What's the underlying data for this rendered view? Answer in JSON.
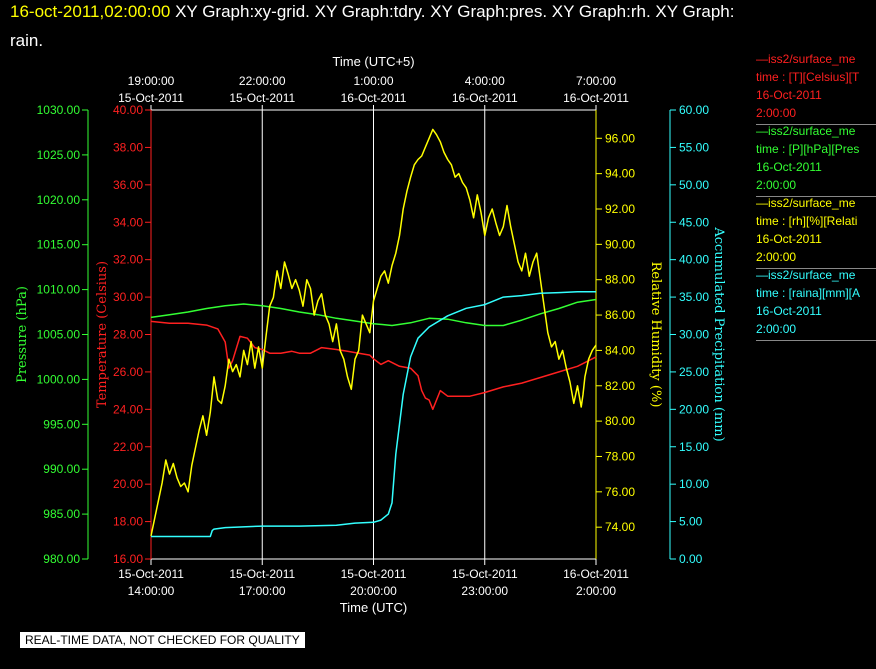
{
  "header": {
    "timestamp": "16-oct-2011,02:00:00",
    "graphs": " XY Graph:xy-grid.  XY Graph:tdry.  XY Graph:pres.  XY Graph:rh.  XY Graph:",
    "graphs_cont": "rain."
  },
  "footer": "REAL-TIME DATA, NOT CHECKED FOR QUALITY",
  "legend": [
    {
      "name": "—iss2/surface_me",
      "detail": "time : [T][Celsius][T",
      "date": "16-Oct-2011",
      "time": "2:00:00",
      "color": "#ff2020"
    },
    {
      "name": "—iss2/surface_me",
      "detail": "time : [P][hPa][Pres",
      "date": "16-Oct-2011",
      "time": "2:00:00",
      "color": "#33ff33"
    },
    {
      "name": "—iss2/surface_me",
      "detail": "time : [rh][%][Relati",
      "date": "16-Oct-2011",
      "time": "2:00:00",
      "color": "#ffff00"
    },
    {
      "name": "—iss2/surface_me",
      "detail": "time : [raina][mm][A",
      "date": "16-Oct-2011",
      "time": "2:00:00",
      "color": "#33ffff"
    }
  ],
  "chart_data": {
    "type": "line",
    "xlabel_bottom": "Time (UTC)",
    "xlabel_top": "Time (UTC+5)",
    "x_range_hours": [
      0,
      12
    ],
    "bottom_ticks": [
      {
        "h": 0,
        "date": "15-Oct-2011",
        "time": "14:00:00"
      },
      {
        "h": 3,
        "date": "15-Oct-2011",
        "time": "17:00:00"
      },
      {
        "h": 6,
        "date": "15-Oct-2011",
        "time": "20:00:00"
      },
      {
        "h": 9,
        "date": "15-Oct-2011",
        "time": "23:00:00"
      },
      {
        "h": 12,
        "date": "16-Oct-2011",
        "time": "2:00:00"
      }
    ],
    "top_ticks": [
      {
        "h": 0,
        "time": "19:00:00",
        "date": "15-Oct-2011"
      },
      {
        "h": 3,
        "time": "22:00:00",
        "date": "15-Oct-2011"
      },
      {
        "h": 6,
        "time": "1:00:00",
        "date": "16-Oct-2011"
      },
      {
        "h": 9,
        "time": "4:00:00",
        "date": "16-Oct-2011"
      },
      {
        "h": 12,
        "time": "7:00:00",
        "date": "16-Oct-2011"
      }
    ],
    "grid": true,
    "axes": [
      {
        "id": "pres",
        "label": "Pressure (hPa)",
        "color": "#33ff33",
        "min": 980,
        "max": 1030,
        "step": 5,
        "decimals": 2
      },
      {
        "id": "temp",
        "label": "Temperature (Celsius)",
        "color": "#ff2020",
        "min": 16,
        "max": 40,
        "step": 2,
        "decimals": 2
      },
      {
        "id": "rh",
        "label": "Relative Humidity (%)",
        "color": "#ffff00",
        "min": 72.2,
        "max": 97.6,
        "step": 2,
        "first": 74,
        "last": 96,
        "decimals": 2
      },
      {
        "id": "rain",
        "label": "Accumulated Precipitation (mm)",
        "color": "#33ffff",
        "min": 0,
        "max": 60,
        "step": 5,
        "decimals": 2
      }
    ],
    "series": [
      {
        "axis": "temp",
        "color": "#ff2020",
        "points": [
          [
            0,
            28.7
          ],
          [
            0.5,
            28.6
          ],
          [
            1,
            28.6
          ],
          [
            1.5,
            28.5
          ],
          [
            1.8,
            28.3
          ],
          [
            2.0,
            27.6
          ],
          [
            2.1,
            26.2
          ],
          [
            2.2,
            26.6
          ],
          [
            2.4,
            27.9
          ],
          [
            2.6,
            27.8
          ],
          [
            2.8,
            27.3
          ],
          [
            3.0,
            27.2
          ],
          [
            3.2,
            27.0
          ],
          [
            3.5,
            27.0
          ],
          [
            3.8,
            27.1
          ],
          [
            4.0,
            27.0
          ],
          [
            4.3,
            27.0
          ],
          [
            4.6,
            27.3
          ],
          [
            5.0,
            27.2
          ],
          [
            5.3,
            27.1
          ],
          [
            5.6,
            27.0
          ],
          [
            5.9,
            26.9
          ],
          [
            6.0,
            26.7
          ],
          [
            6.2,
            26.4
          ],
          [
            6.4,
            26.6
          ],
          [
            6.7,
            26.3
          ],
          [
            7.0,
            26.2
          ],
          [
            7.2,
            25.8
          ],
          [
            7.3,
            25.0
          ],
          [
            7.4,
            24.6
          ],
          [
            7.5,
            24.5
          ],
          [
            7.6,
            24.0
          ],
          [
            7.8,
            25.0
          ],
          [
            8.0,
            24.7
          ],
          [
            8.3,
            24.7
          ],
          [
            8.6,
            24.7
          ],
          [
            9.0,
            24.9
          ],
          [
            9.5,
            25.2
          ],
          [
            10.0,
            25.4
          ],
          [
            10.5,
            25.7
          ],
          [
            11.0,
            26.0
          ],
          [
            11.5,
            26.3
          ],
          [
            12.0,
            26.8
          ]
        ]
      },
      {
        "axis": "pres",
        "color": "#33ff33",
        "points": [
          [
            0,
            1006.9
          ],
          [
            0.5,
            1007.2
          ],
          [
            1,
            1007.5
          ],
          [
            1.5,
            1007.9
          ],
          [
            2,
            1008.2
          ],
          [
            2.5,
            1008.4
          ],
          [
            3,
            1008.2
          ],
          [
            3.5,
            1007.9
          ],
          [
            4,
            1007.5
          ],
          [
            4.5,
            1007.2
          ],
          [
            5,
            1006.8
          ],
          [
            5.5,
            1006.5
          ],
          [
            6,
            1006.2
          ],
          [
            6.5,
            1006.0
          ],
          [
            7,
            1006.3
          ],
          [
            7.5,
            1006.8
          ],
          [
            8,
            1006.7
          ],
          [
            8.5,
            1006.3
          ],
          [
            9,
            1006.0
          ],
          [
            9.5,
            1006.0
          ],
          [
            10,
            1006.6
          ],
          [
            10.5,
            1007.3
          ],
          [
            11,
            1007.9
          ],
          [
            11.5,
            1008.6
          ],
          [
            12,
            1008.9
          ]
        ]
      },
      {
        "axis": "rh",
        "color": "#ffff00",
        "points": [
          [
            0,
            73.5
          ],
          [
            0.1,
            74.5
          ],
          [
            0.2,
            75.5
          ],
          [
            0.3,
            76.5
          ],
          [
            0.4,
            77.8
          ],
          [
            0.5,
            77.0
          ],
          [
            0.6,
            77.6
          ],
          [
            0.7,
            76.8
          ],
          [
            0.8,
            76.3
          ],
          [
            0.9,
            76.5
          ],
          [
            1.0,
            76.0
          ],
          [
            1.1,
            77.5
          ],
          [
            1.2,
            78.5
          ],
          [
            1.3,
            79.5
          ],
          [
            1.4,
            80.3
          ],
          [
            1.5,
            79.2
          ],
          [
            1.6,
            80.5
          ],
          [
            1.7,
            82.5
          ],
          [
            1.8,
            81.2
          ],
          [
            1.9,
            81.0
          ],
          [
            2.0,
            82.0
          ],
          [
            2.1,
            83.5
          ],
          [
            2.2,
            82.8
          ],
          [
            2.3,
            83.2
          ],
          [
            2.4,
            82.5
          ],
          [
            2.5,
            84.0
          ],
          [
            2.6,
            83.2
          ],
          [
            2.7,
            84.5
          ],
          [
            2.8,
            83.0
          ],
          [
            2.9,
            84.2
          ],
          [
            3.0,
            83.0
          ],
          [
            3.1,
            84.8
          ],
          [
            3.2,
            86.5
          ],
          [
            3.3,
            87.0
          ],
          [
            3.4,
            88.5
          ],
          [
            3.5,
            87.5
          ],
          [
            3.6,
            89.0
          ],
          [
            3.7,
            88.3
          ],
          [
            3.8,
            87.5
          ],
          [
            3.9,
            88.0
          ],
          [
            4.0,
            87.4
          ],
          [
            4.1,
            86.5
          ],
          [
            4.2,
            88.0
          ],
          [
            4.3,
            87.5
          ],
          [
            4.4,
            86.0
          ],
          [
            4.5,
            86.8
          ],
          [
            4.6,
            87.2
          ],
          [
            4.7,
            86.0
          ],
          [
            4.8,
            85.5
          ],
          [
            4.9,
            84.5
          ],
          [
            5.0,
            85.5
          ],
          [
            5.1,
            84.0
          ],
          [
            5.2,
            83.5
          ],
          [
            5.3,
            82.5
          ],
          [
            5.4,
            81.8
          ],
          [
            5.5,
            83.5
          ],
          [
            5.6,
            84.0
          ],
          [
            5.7,
            86.0
          ],
          [
            5.8,
            85.5
          ],
          [
            5.9,
            85.0
          ],
          [
            6.0,
            86.8
          ],
          [
            6.1,
            87.5
          ],
          [
            6.2,
            88.2
          ],
          [
            6.3,
            88.5
          ],
          [
            6.4,
            87.8
          ],
          [
            6.5,
            88.8
          ],
          [
            6.6,
            89.5
          ],
          [
            6.7,
            90.5
          ],
          [
            6.8,
            92.0
          ],
          [
            6.9,
            93.0
          ],
          [
            7.0,
            93.8
          ],
          [
            7.1,
            94.5
          ],
          [
            7.2,
            94.8
          ],
          [
            7.3,
            95.0
          ],
          [
            7.4,
            95.5
          ],
          [
            7.5,
            96.0
          ],
          [
            7.6,
            96.5
          ],
          [
            7.7,
            96.2
          ],
          [
            7.8,
            95.8
          ],
          [
            7.9,
            95.2
          ],
          [
            8.0,
            94.8
          ],
          [
            8.1,
            94.5
          ],
          [
            8.2,
            93.8
          ],
          [
            8.3,
            94.0
          ],
          [
            8.4,
            93.5
          ],
          [
            8.5,
            93.2
          ],
          [
            8.6,
            92.5
          ],
          [
            8.7,
            91.5
          ],
          [
            8.8,
            92.8
          ],
          [
            8.9,
            91.8
          ],
          [
            9.0,
            90.5
          ],
          [
            9.1,
            91.5
          ],
          [
            9.2,
            92.0
          ],
          [
            9.3,
            91.2
          ],
          [
            9.4,
            90.5
          ],
          [
            9.5,
            91.0
          ],
          [
            9.6,
            92.2
          ],
          [
            9.7,
            91.0
          ],
          [
            9.8,
            90.0
          ],
          [
            9.9,
            89.0
          ],
          [
            10.0,
            88.5
          ],
          [
            10.1,
            89.5
          ],
          [
            10.2,
            88.2
          ],
          [
            10.3,
            89.0
          ],
          [
            10.4,
            89.5
          ],
          [
            10.5,
            88.0
          ],
          [
            10.6,
            86.5
          ],
          [
            10.7,
            85.0
          ],
          [
            10.8,
            84.2
          ],
          [
            10.9,
            84.5
          ],
          [
            11.0,
            83.5
          ],
          [
            11.1,
            84.0
          ],
          [
            11.2,
            83.0
          ],
          [
            11.3,
            82.2
          ],
          [
            11.4,
            81.0
          ],
          [
            11.5,
            82.0
          ],
          [
            11.6,
            80.8
          ],
          [
            11.65,
            81.5
          ],
          [
            11.7,
            82.5
          ],
          [
            11.8,
            83.5
          ],
          [
            11.9,
            84.0
          ],
          [
            12.0,
            84.3
          ]
        ]
      },
      {
        "axis": "rain",
        "color": "#33ffff",
        "points": [
          [
            0,
            3
          ],
          [
            1.6,
            3.0
          ],
          [
            1.65,
            3.8
          ],
          [
            1.7,
            4.0
          ],
          [
            2,
            4.2
          ],
          [
            3,
            4.4
          ],
          [
            4,
            4.4
          ],
          [
            5,
            4.5
          ],
          [
            5.5,
            4.8
          ],
          [
            6,
            4.9
          ],
          [
            6.2,
            5.2
          ],
          [
            6.4,
            6.0
          ],
          [
            6.5,
            7.5
          ],
          [
            6.6,
            14
          ],
          [
            6.8,
            22
          ],
          [
            7.0,
            27
          ],
          [
            7.2,
            29.5
          ],
          [
            7.5,
            31
          ],
          [
            8,
            32.5
          ],
          [
            8.5,
            33.5
          ],
          [
            9,
            34
          ],
          [
            9.5,
            35
          ],
          [
            10,
            35.2
          ],
          [
            10.5,
            35.5
          ],
          [
            11,
            35.6
          ],
          [
            11.5,
            35.7
          ],
          [
            12,
            35.7
          ]
        ]
      }
    ]
  }
}
